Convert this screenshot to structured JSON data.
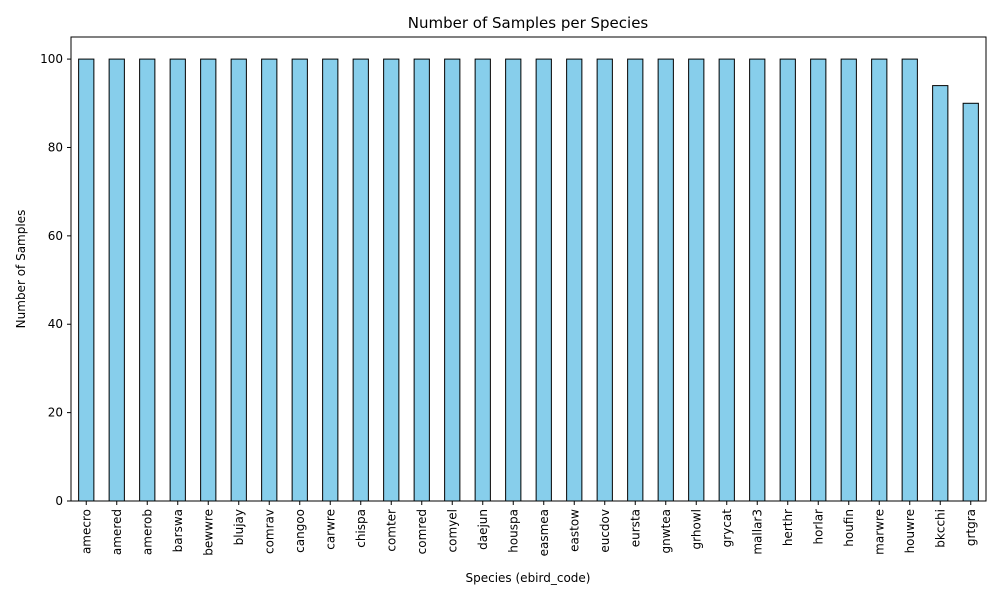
{
  "chart_data": {
    "type": "bar",
    "title": "Number of Samples per Species",
    "xlabel": "Species (ebird_code)",
    "ylabel": "Number of Samples",
    "ylim": [
      0,
      105
    ],
    "yticks": [
      0,
      20,
      40,
      60,
      80,
      100
    ],
    "grid": false,
    "legend": "none",
    "bar_color": "#87ceeb",
    "bar_edge_color": "#000000",
    "categories": [
      "amecro",
      "amered",
      "amerob",
      "barswa",
      "bewwre",
      "blujay",
      "comrav",
      "cangoo",
      "carwre",
      "chispa",
      "comter",
      "comred",
      "comyel",
      "daejun",
      "houspa",
      "easmea",
      "eastow",
      "eucdov",
      "eursta",
      "gnwtea",
      "grhowl",
      "grycat",
      "mallar3",
      "herthr",
      "horlar",
      "houfin",
      "marwre",
      "houwre",
      "bkcchi",
      "grtgra"
    ],
    "values": [
      100,
      100,
      100,
      100,
      100,
      100,
      100,
      100,
      100,
      100,
      100,
      100,
      100,
      100,
      100,
      100,
      100,
      100,
      100,
      100,
      100,
      100,
      100,
      100,
      100,
      100,
      100,
      100,
      94,
      90
    ]
  }
}
